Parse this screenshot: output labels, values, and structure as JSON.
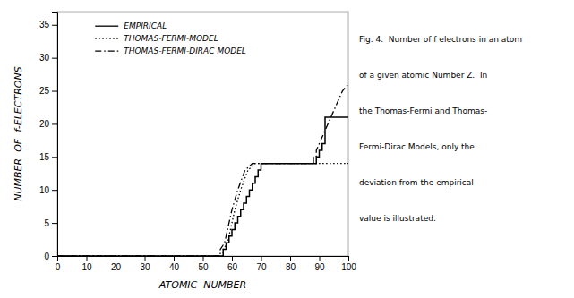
{
  "chart_data": {
    "type": "line",
    "xlabel": "ATOMIC  NUMBER",
    "ylabel": "NUMBER  OF  f-ELECTRONS",
    "xlim": [
      0,
      100
    ],
    "ylim": [
      0,
      37
    ],
    "xticks": [
      0,
      10,
      20,
      30,
      40,
      50,
      60,
      70,
      80,
      90,
      100
    ],
    "yticks": [
      0,
      5,
      10,
      15,
      20,
      25,
      30,
      35
    ],
    "grid": false,
    "legend": "upper left",
    "series": [
      {
        "name": "EMPIRICAL",
        "color": "#000000",
        "line_style": "solid",
        "x": [
          0,
          57,
          57,
          58,
          58,
          59,
          59,
          60,
          60,
          61,
          61,
          62,
          62,
          63,
          63,
          64,
          64,
          65,
          65,
          66,
          66,
          67,
          67,
          68,
          68,
          69,
          69,
          70,
          70,
          71,
          71,
          89,
          89,
          90,
          90,
          91,
          91,
          92,
          92,
          100
        ],
        "values": [
          0,
          0,
          1,
          1,
          2,
          2,
          3,
          3,
          4,
          4,
          5,
          5,
          6,
          6,
          7,
          7,
          8,
          8,
          9,
          9,
          10,
          10,
          11,
          11,
          12,
          12,
          13,
          13,
          14,
          14,
          14,
          14,
          15,
          15,
          16,
          16,
          17,
          17,
          21,
          21
        ]
      },
      {
        "name": "THOMAS-FERMI-MODEL",
        "color": "#000000",
        "line_style": "dotted",
        "x": [
          0,
          57,
          57,
          58.5,
          59.5,
          61,
          63,
          65.5,
          68,
          68,
          100
        ],
        "values": [
          0,
          0,
          1,
          2,
          4,
          7,
          10,
          13,
          14,
          14,
          14
        ]
      },
      {
        "name": "THOMAS-FERMI-DIRAC MODEL",
        "color": "#000000",
        "line_style": "dashdot",
        "x": [
          0,
          56,
          56,
          57.5,
          58.5,
          60,
          62,
          64.5,
          67,
          67,
          88,
          88,
          89,
          89,
          90,
          91,
          92,
          93,
          94,
          95,
          96,
          97,
          98,
          99,
          100
        ],
        "values": [
          0,
          0,
          1,
          2,
          4,
          7,
          10,
          13,
          14,
          14,
          14,
          15,
          15,
          16,
          17,
          18,
          19,
          20,
          21,
          22,
          23,
          24,
          25,
          25.5,
          26
        ]
      }
    ],
    "annotations": [
      "Fig. 4.  Number of f electrons in an atom",
      "of a given atomic Number Z.  In",
      "the Thomas-Fermi and Thomas-",
      "Fermi-Dirac Models, only the",
      "deviation from the empirical",
      "value is illustrated."
    ]
  }
}
